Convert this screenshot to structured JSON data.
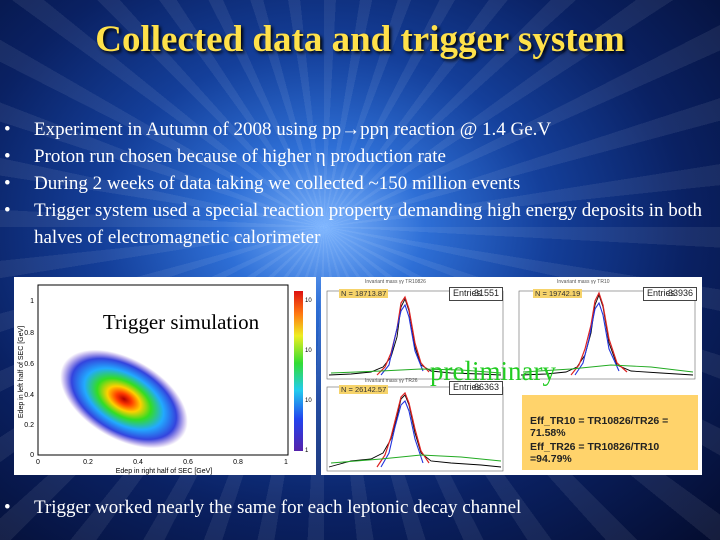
{
  "title": "Collected data and trigger system",
  "bullets": [
    "Experiment in Autumn of 2008 using pp→ppη reaction @ 1.4 Ge.V",
    "Proton run chosen because of higher η production rate",
    "During 2 weeks of data taking we collected ~150 million events",
    "Trigger system used a special reaction property demanding high energy deposits in both halves of electromagnetic calorimeter"
  ],
  "bottom_bullet": "Trigger worked nearly the same for each leptonic decay channel",
  "left_plot": {
    "label": "Trigger simulation",
    "ylabel": "Edep in left half of SEC [GeV]",
    "xlabel": "Edep in right half of SEC [GeV]",
    "y_ticks": [
      "0",
      "0.2",
      "0.4",
      "0.6",
      "0.8",
      "1"
    ],
    "x_ticks": [
      "0",
      "0.2",
      "0.4",
      "0.6",
      "0.8",
      "1"
    ],
    "scale_ticks": [
      "1",
      "10",
      "10",
      "10"
    ]
  },
  "right_plots": {
    "watermark": "preliminary",
    "hist1": {
      "n_label": "N = 18713.87",
      "stat_label": "Entries",
      "entries": "31551"
    },
    "hist2": {
      "n_label": "N = 19742.19",
      "stat_label": "Entries",
      "entries": "33936"
    },
    "hist3": {
      "n_label": "N = 26142.57",
      "stat_label": "Entries",
      "entries": "66363"
    },
    "eff1": "Eff_TR10 = TR10826/TR26 = 71.58%",
    "eff2": "Eff_TR26 = TR10826/TR10 =94.79%"
  }
}
